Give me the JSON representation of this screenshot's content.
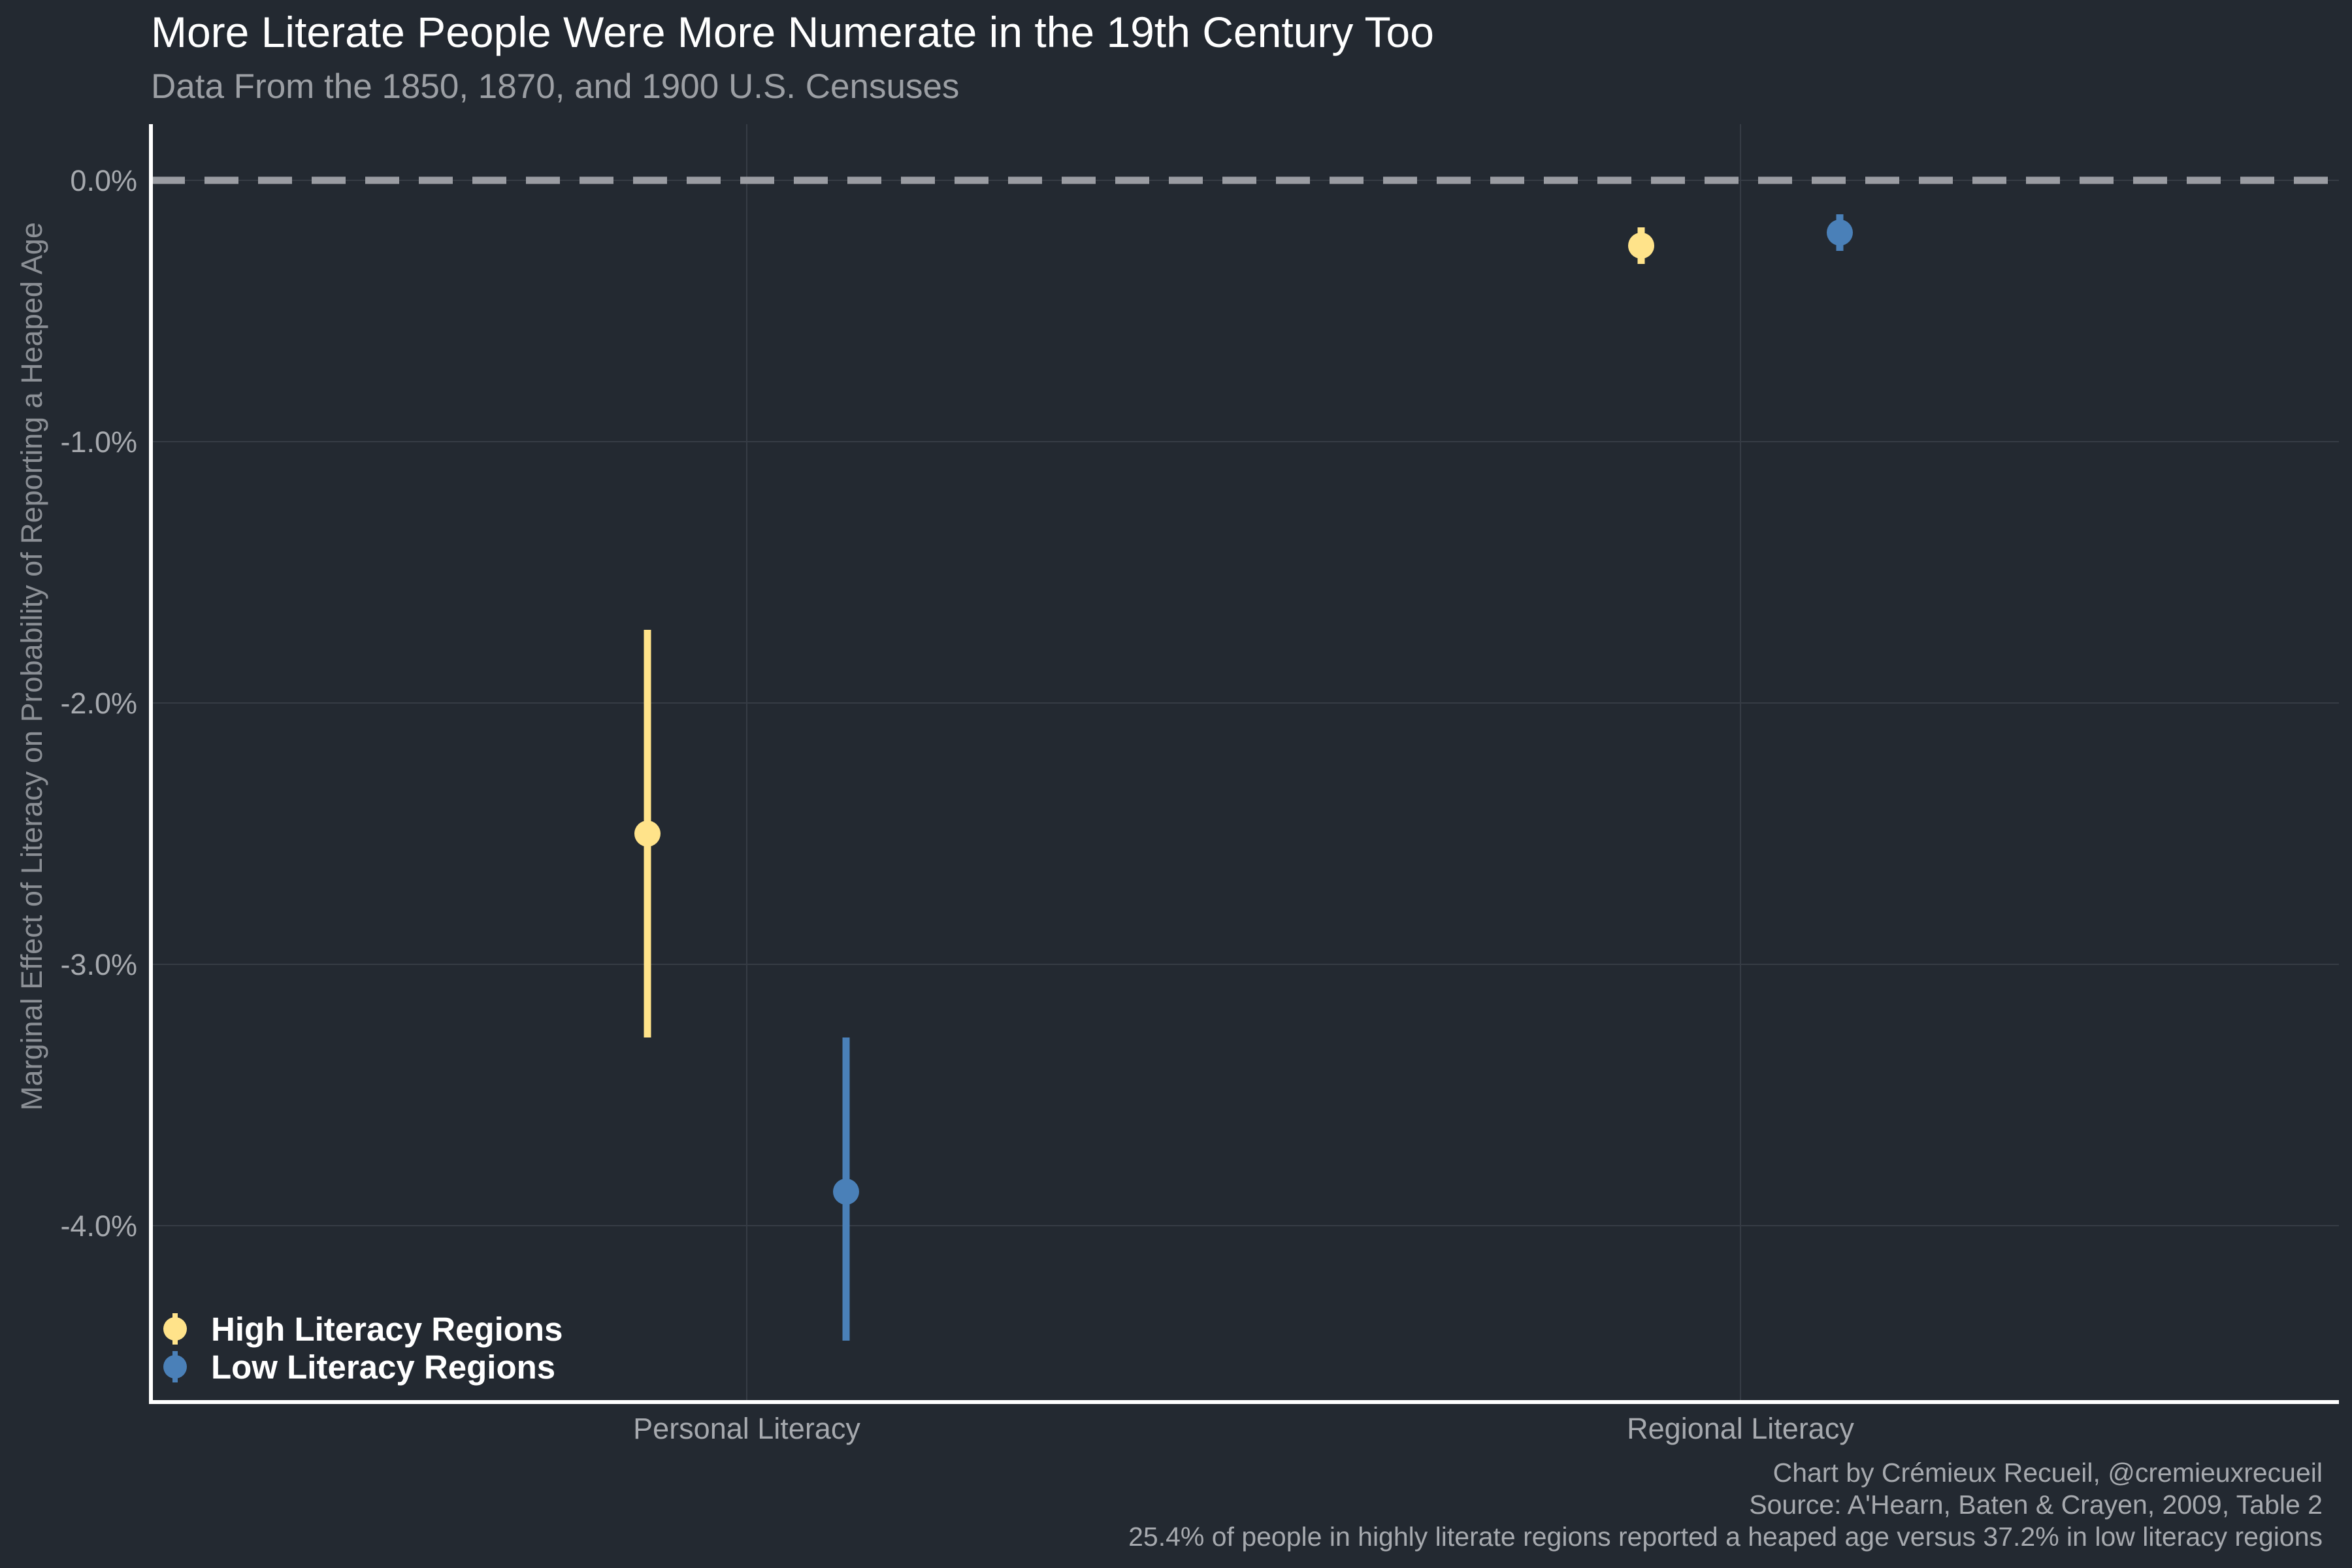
{
  "chart_data": {
    "type": "scatter",
    "title": "More Literate People Were More Numerate in the 19th Century Too",
    "subtitle": "Data From the 1850, 1870, and 1900 U.S. Censuses",
    "ylabel": "Marginal Effect of Literacy on Probability of Reporting a Heaped Age",
    "xlabel": "",
    "categories": [
      "Personal Literacy",
      "Regional Literacy"
    ],
    "y_ticks": [
      "0.0%",
      "-1.0%",
      "-2.0%",
      "-3.0%",
      "-4.0%"
    ],
    "ylim": [
      -4.67,
      0.2
    ],
    "reference_line": 0,
    "grid": true,
    "legend_position": "bottom-left",
    "series": [
      {
        "name": "High Literacy Regions",
        "color": "#ffe38a",
        "values": [
          -2.5,
          -0.25
        ],
        "lower": [
          -3.28,
          -0.32
        ],
        "upper": [
          -1.72,
          -0.18
        ]
      },
      {
        "name": "Low Literacy Regions",
        "color": "#4a80b8",
        "values": [
          -3.87,
          -0.2
        ],
        "lower": [
          -4.44,
          -0.27
        ],
        "upper": [
          -3.28,
          -0.13
        ]
      }
    ],
    "captions": [
      "Chart by Crémieux Recueil, @cremieuxrecueil",
      "Source: A'Hearn, Baten & Crayen, 2009, Table 2",
      "25.4% of people in highly literate regions reported a heaped age versus 37.2% in low literacy regions"
    ]
  }
}
